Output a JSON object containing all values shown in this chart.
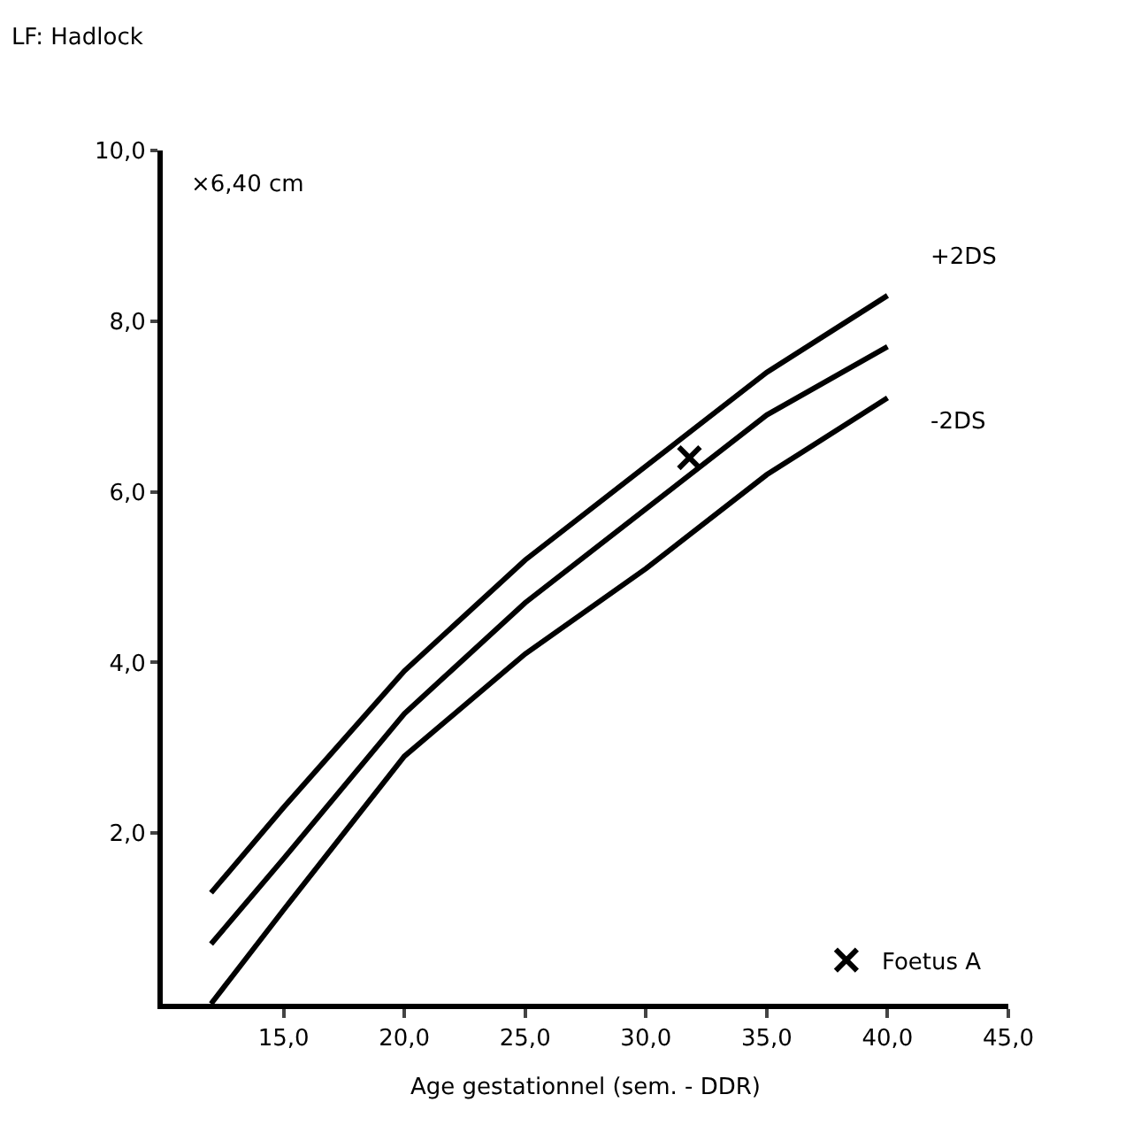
{
  "chart_data": {
    "type": "line",
    "title": "LF: Hadlock",
    "xlabel": "Age gestationnel (sem. - DDR)",
    "xlim": [
      10,
      45
    ],
    "ylim": [
      0,
      10
    ],
    "xticks": [
      {
        "value": 15,
        "label": "15,0"
      },
      {
        "value": 20,
        "label": "20,0"
      },
      {
        "value": 25,
        "label": "25,0"
      },
      {
        "value": 30,
        "label": "30,0"
      },
      {
        "value": 35,
        "label": "35,0"
      },
      {
        "value": 40,
        "label": "40,0"
      },
      {
        "value": 45,
        "label": "45,0"
      }
    ],
    "yticks": [
      {
        "value": 2,
        "label": "2,0"
      },
      {
        "value": 4,
        "label": "4,0"
      },
      {
        "value": 6,
        "label": "6,0"
      },
      {
        "value": 8,
        "label": "8,0"
      },
      {
        "value": 10,
        "label": "10,0"
      }
    ],
    "x": [
      12,
      15,
      20,
      25,
      30,
      35,
      40
    ],
    "series": [
      {
        "name": "+2DS",
        "color": "#000000",
        "values": [
          1.3,
          2.3,
          3.9,
          5.2,
          6.3,
          7.4,
          8.3
        ]
      },
      {
        "color": "#000000",
        "values": [
          0.7,
          1.7,
          3.4,
          4.7,
          5.8,
          6.9,
          7.7
        ]
      },
      {
        "name": "-2DS",
        "color": "#000000",
        "values": [
          0,
          1.1,
          2.9,
          4.1,
          5.1,
          6.2,
          7.1
        ]
      },
      {
        "name": "Foetus A",
        "type": "scatter",
        "marker": "cross",
        "color": "#000000",
        "x": [
          31.8
        ],
        "values": [
          6.4
        ]
      }
    ],
    "marker": "none",
    "line_style": "solid",
    "grid": false,
    "legend": "bottom right",
    "annotations": [
      "×6,40 cm"
    ]
  }
}
